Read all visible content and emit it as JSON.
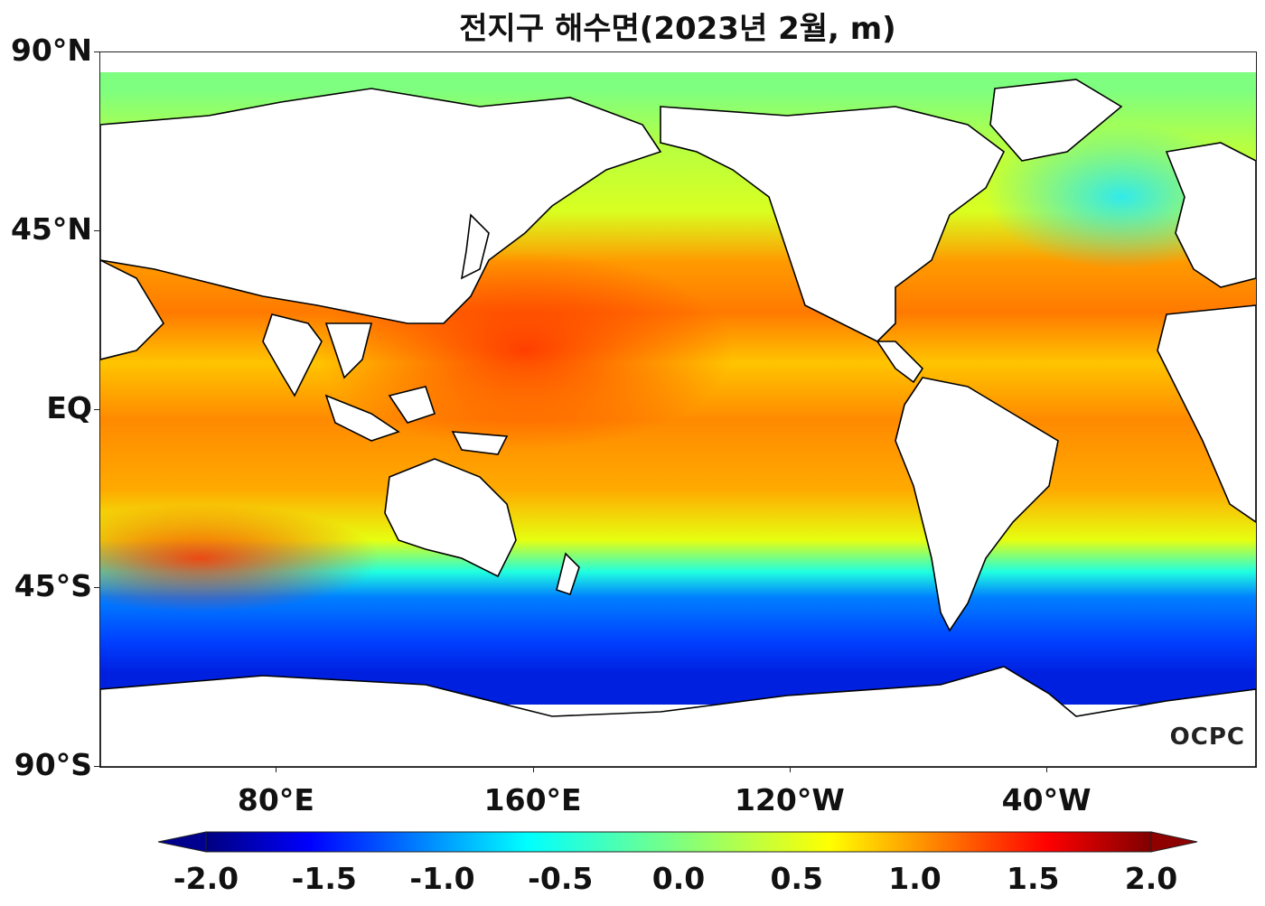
{
  "title": "전지구 해수면(2023년 2월, m)",
  "logo_text": "OCPC",
  "y_axis": {
    "labels": [
      "90°N",
      "45°N",
      "EQ",
      "45°S",
      "90°S"
    ],
    "lat_values": [
      90,
      45,
      0,
      -45,
      -90
    ]
  },
  "x_axis": {
    "labels": [
      "80°E",
      "160°E",
      "120°W",
      "40°W"
    ],
    "lon_values": [
      80,
      160,
      240,
      320
    ]
  },
  "colorbar": {
    "labels": [
      "-2.0",
      "-1.5",
      "-1.0",
      "-0.5",
      "0.0",
      "0.5",
      "1.0",
      "1.5",
      "2.0"
    ],
    "values": [
      -2.0,
      -1.5,
      -1.0,
      -0.5,
      0.0,
      0.5,
      1.0,
      1.5,
      2.0
    ],
    "colormap": "jet",
    "extend": "both"
  },
  "map": {
    "projection": "equirectangular",
    "lon_range": [
      25,
      385
    ],
    "lat_range": [
      -90,
      90
    ],
    "land_color": "#ffffff",
    "coastline_color": "#000000"
  }
}
